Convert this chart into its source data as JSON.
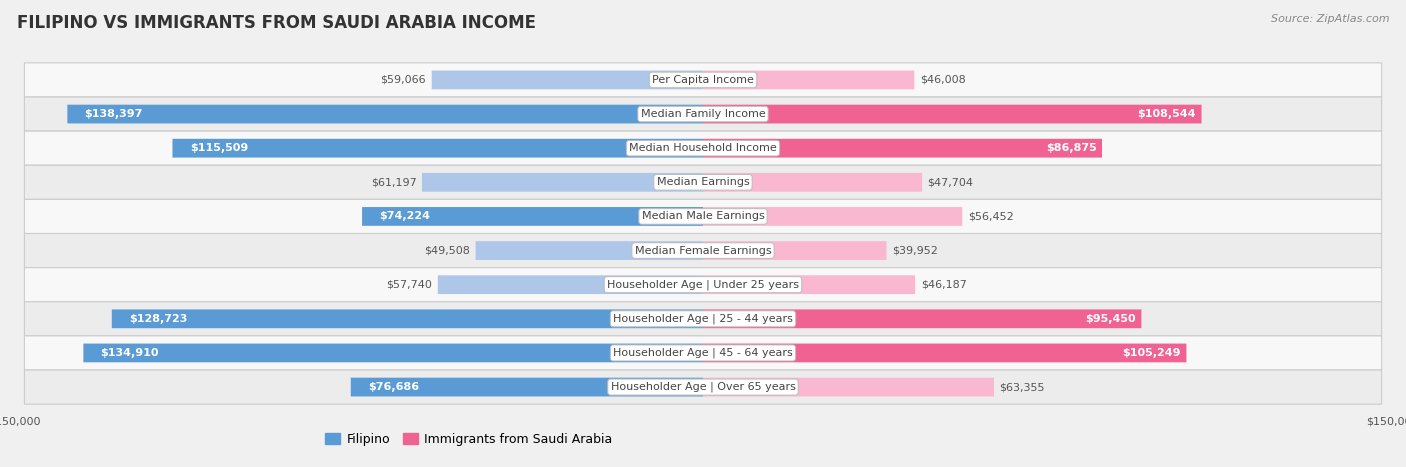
{
  "title": "FILIPINO VS IMMIGRANTS FROM SAUDI ARABIA INCOME",
  "source": "Source: ZipAtlas.com",
  "categories": [
    "Per Capita Income",
    "Median Family Income",
    "Median Household Income",
    "Median Earnings",
    "Median Male Earnings",
    "Median Female Earnings",
    "Householder Age | Under 25 years",
    "Householder Age | 25 - 44 years",
    "Householder Age | 45 - 64 years",
    "Householder Age | Over 65 years"
  ],
  "filipino_values": [
    59066,
    138397,
    115509,
    61197,
    74224,
    49508,
    57740,
    128723,
    134910,
    76686
  ],
  "saudi_values": [
    46008,
    108544,
    86875,
    47704,
    56452,
    39952,
    46187,
    95450,
    105249,
    63355
  ],
  "filipino_color_light": "#aec6e8",
  "filipino_color_dark": "#5b9bd5",
  "saudi_color_light": "#f9b8cf",
  "saudi_color_dark": "#f06292",
  "max_value": 150000,
  "background_color": "#f0f0f0",
  "row_bg_light": "#f8f8f8",
  "row_bg_dark": "#ececec",
  "title_fontsize": 12,
  "label_fontsize": 8,
  "value_fontsize": 8,
  "legend_fontsize": 9,
  "source_fontsize": 8,
  "inside_label_threshold": 65000
}
